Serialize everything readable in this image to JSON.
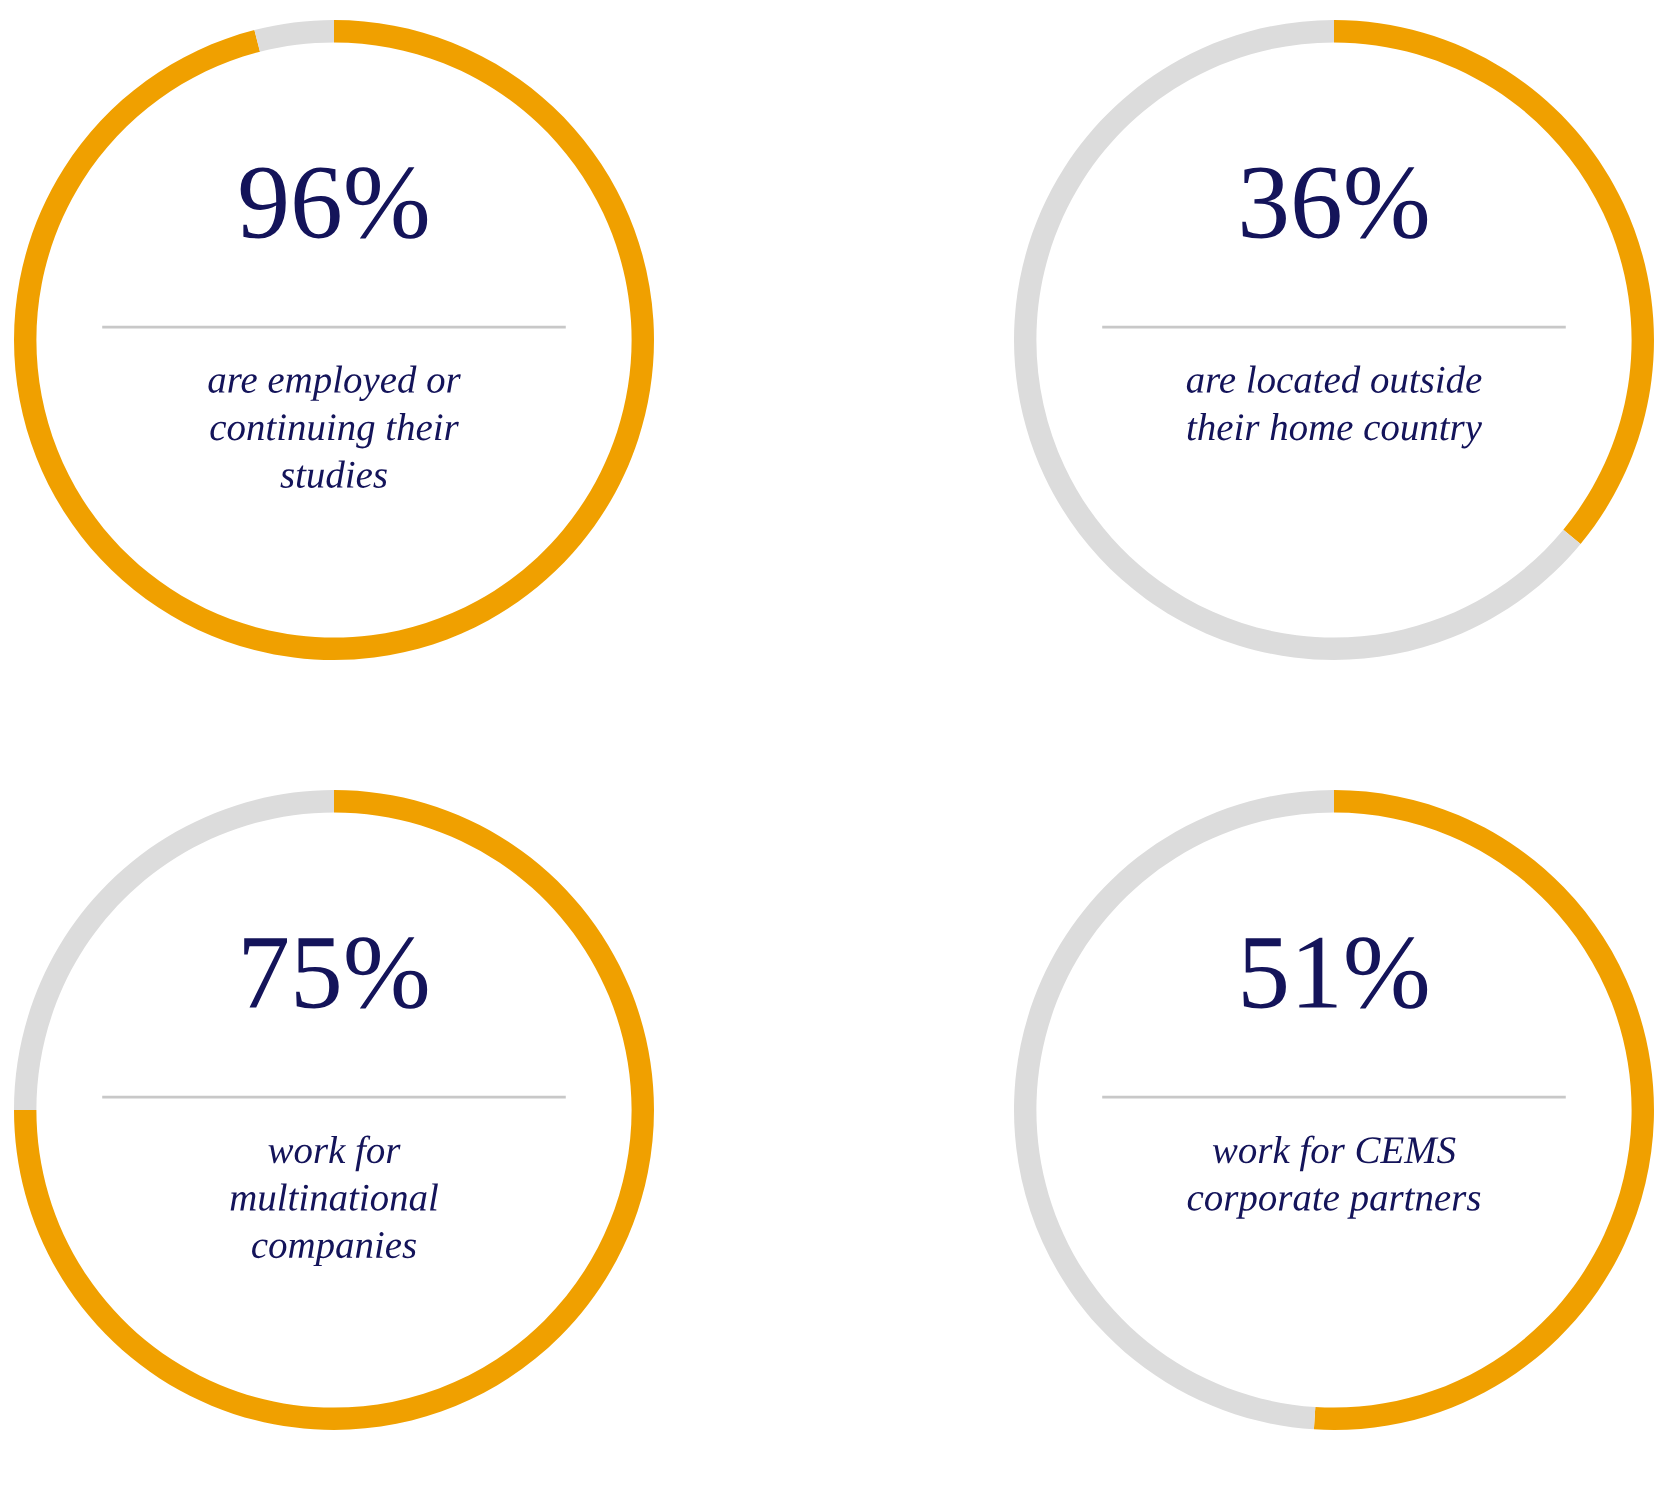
{
  "chart_data": [
    {
      "type": "donut",
      "categories": [
        null,
        null
      ],
      "values": [
        96,
        4
      ],
      "colors": [
        "#f0a000",
        "#dcdcdc"
      ],
      "value_labels": [
        "96%",
        null
      ],
      "annotations": [
        "are employed or\ncontinuing their\nstudies"
      ]
    },
    {
      "type": "donut",
      "categories": [
        null,
        null
      ],
      "values": [
        36,
        64
      ],
      "colors": [
        "#f0a000",
        "#dcdcdc"
      ],
      "value_labels": [
        "36%",
        null
      ],
      "annotations": [
        "are located outside\ntheir home country"
      ]
    },
    {
      "type": "donut",
      "categories": [
        null,
        null
      ],
      "values": [
        75,
        25
      ],
      "colors": [
        "#f0a000",
        "#dcdcdc"
      ],
      "value_labels": [
        "75%",
        null
      ],
      "annotations": [
        "work for\nmultinational\ncompanies"
      ]
    },
    {
      "type": "donut",
      "categories": [
        null,
        null
      ],
      "values": [
        51,
        49
      ],
      "colors": [
        "#f0a000",
        "#dcdcdc"
      ],
      "value_labels": [
        "51%",
        null
      ],
      "annotations": [
        "work for CEMS\ncorporate partners"
      ]
    }
  ]
}
